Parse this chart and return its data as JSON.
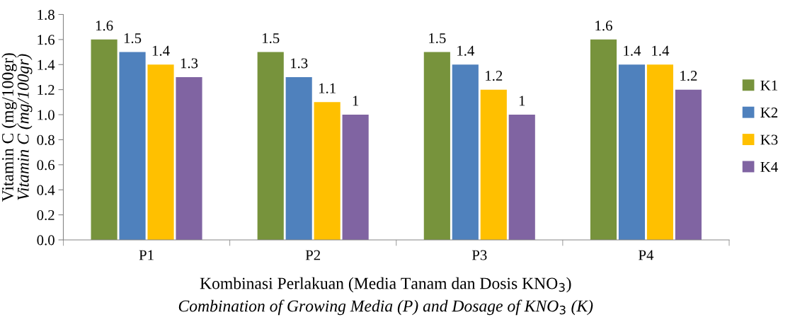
{
  "chart_data": {
    "type": "bar",
    "categories": [
      "P1",
      "P2",
      "P3",
      "P4"
    ],
    "series": [
      {
        "name": "K1",
        "color": "#77933c",
        "values": [
          1.6,
          1.5,
          1.5,
          1.6
        ],
        "value_labels": [
          "1.6",
          "1.5",
          "1.5",
          "1.6"
        ]
      },
      {
        "name": "K2",
        "color": "#4f81bd",
        "values": [
          1.5,
          1.3,
          1.4,
          1.4
        ],
        "value_labels": [
          "1.5",
          "1.3",
          "1.4",
          "1.4"
        ]
      },
      {
        "name": "K3",
        "color": "#ffc000",
        "values": [
          1.4,
          1.1,
          1.2,
          1.4
        ],
        "value_labels": [
          "1.4",
          "1.1",
          "1.2",
          "1.4"
        ]
      },
      {
        "name": "K4",
        "color": "#8064a2",
        "values": [
          1.3,
          1.0,
          1.0,
          1.2
        ],
        "value_labels": [
          "1.3",
          "1",
          "1",
          "1.2"
        ]
      }
    ],
    "xlabel": "Kombinasi Perlakuan (Media Tanam dan Dosis KNO$_{3}$)\nCombination of Growing Media (P) and Dosage of KNO$_{3}$ (K)",
    "ylabel": "Vitamin C (mg/100gr)\nVitamin C (mg/100gr)",
    "ylim": [
      0,
      1.8
    ],
    "yticks": [
      {
        "value": 0,
        "label": "0.0"
      },
      {
        "value": 0.2,
        "label": "0.2"
      },
      {
        "value": 0.4,
        "label": "0.4"
      },
      {
        "value": 0.6,
        "label": "0.6"
      },
      {
        "value": 0.8,
        "label": "0.8"
      },
      {
        "value": 1.0,
        "label": "1.0"
      },
      {
        "value": 1.2,
        "label": "1.2"
      },
      {
        "value": 1.4,
        "label": "1.4"
      },
      {
        "value": 1.6,
        "label": "1.6"
      },
      {
        "value": 1.8,
        "label": "1.8"
      }
    ],
    "grid": false,
    "legend": "right"
  }
}
